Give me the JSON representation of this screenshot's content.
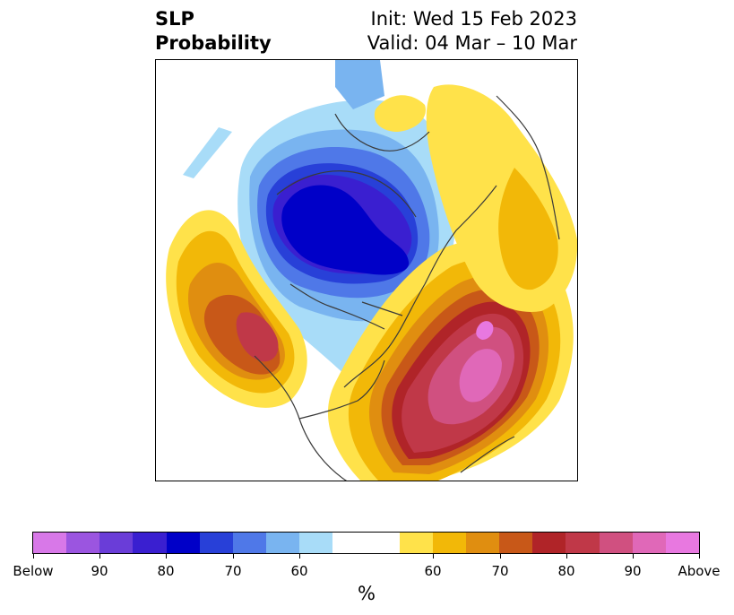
{
  "title": {
    "left_line1": "SLP",
    "left_line2": "Probability",
    "right_line1": "Init: Wed 15 Feb 2023",
    "right_line2": "Valid: 04 Mar – 10 Mar"
  },
  "colorbar": {
    "segments": [
      {
        "color": "#d878e8"
      },
      {
        "color": "#9b55e0"
      },
      {
        "color": "#6a3dd8"
      },
      {
        "color": "#3a1fd0"
      },
      {
        "color": "#0000c8"
      },
      {
        "color": "#2840d8"
      },
      {
        "color": "#4f78e8"
      },
      {
        "color": "#79b4f0"
      },
      {
        "color": "#a8dcf8"
      },
      {
        "color": "#ffffff"
      },
      {
        "color": "#ffe24a"
      },
      {
        "color": "#f2b808"
      },
      {
        "color": "#e08e10"
      },
      {
        "color": "#c85818"
      },
      {
        "color": "#b02428"
      },
      {
        "color": "#c03848"
      },
      {
        "color": "#d05080"
      },
      {
        "color": "#e068b8"
      },
      {
        "color": "#e878e0"
      }
    ],
    "tick_labels": [
      "Below",
      "90",
      "80",
      "70",
      "60",
      "60",
      "70",
      "80",
      "90",
      "Above"
    ],
    "units": "%"
  },
  "map": {
    "colors": {
      "below_darkest": "#0000c8",
      "below_strong": "#3a1fd0",
      "below_mid": "#2840d8",
      "below_light": "#4f78e8",
      "below_pale": "#79b4f0",
      "below_palest": "#a8dcf8",
      "above_pale": "#ffe24a",
      "above_light": "#f2b808",
      "above_mid": "#e08e10",
      "above_orange": "#c85818",
      "above_red": "#b02428",
      "above_rose": "#c03848",
      "above_pink": "#d05080",
      "above_magenta": "#e068b8",
      "above_max": "#e878e0",
      "coastline": "#3a3a3a"
    }
  }
}
